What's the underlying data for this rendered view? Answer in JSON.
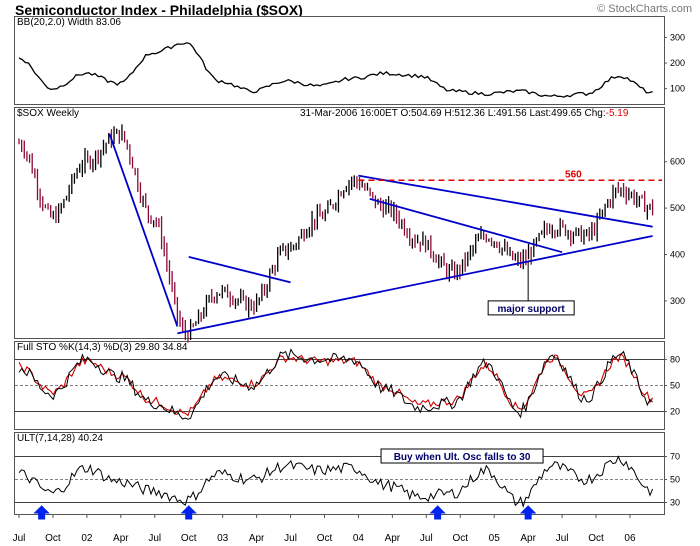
{
  "title": "Semiconductor Index - Philadelphia ($SOX)",
  "brand": "StockCharts.com",
  "quote": {
    "date": "31-Mar-2006 16:00ET",
    "open": "O:504.69",
    "high": "H:512.36",
    "low": "L:491.56",
    "last": "Last:499.65",
    "chg_label": "Chg:",
    "chg": "-5.19"
  },
  "panels": {
    "bbwidth": {
      "label": "BB(20,2.0) Width",
      "value": "83.06",
      "ticks": [
        100,
        200,
        300
      ]
    },
    "price": {
      "label": "$SOX Weekly",
      "ticks": [
        300,
        400,
        500,
        600
      ]
    },
    "sto": {
      "label": "Full STO %K(14,3) %D(3)",
      "k_value": "29.80",
      "d_value": "34.84",
      "ticks": [
        20,
        50,
        80
      ]
    },
    "ult": {
      "label": "ULT(7,14,28)",
      "value": "40.24",
      "ticks": [
        30,
        50,
        70
      ]
    }
  },
  "x_labels": [
    "Jul",
    "Oct",
    "02",
    "Apr",
    "Jul",
    "Oct",
    "03",
    "Apr",
    "Jul",
    "Oct",
    "04",
    "Apr",
    "Jul",
    "Oct",
    "05",
    "Apr",
    "Jul",
    "Oct",
    "06"
  ],
  "annotations": {
    "resistance_label": "560",
    "major_support": "major support",
    "buy_note": "Buy when Ult. Osc falls to 30"
  },
  "colors": {
    "price_down": "#8b0a3a",
    "price_up": "#000000",
    "trendline": "#0000cc",
    "resistance": "#dd0000",
    "d_line": "#cc0000",
    "arrow": "#0022ee"
  },
  "chart_data": {
    "type": "line",
    "title": "Semiconductor Index - Philadelphia ($SOX)",
    "x": [
      "2001-07",
      "2001-10",
      "2002-01",
      "2002-04",
      "2002-07",
      "2002-10",
      "2003-01",
      "2003-04",
      "2003-07",
      "2003-10",
      "2004-01",
      "2004-04",
      "2004-07",
      "2004-10",
      "2005-01",
      "2005-04",
      "2005-07",
      "2005-10",
      "2006-01",
      "2006-03"
    ],
    "series": [
      {
        "name": "$SOX Weekly",
        "values": [
          640,
          480,
          600,
          660,
          480,
          230,
          320,
          290,
          410,
          480,
          560,
          500,
          430,
          360,
          440,
          385,
          460,
          440,
          540,
          500
        ]
      },
      {
        "name": "BB(20,2.0) Width",
        "values": [
          220,
          100,
          160,
          120,
          240,
          280,
          130,
          90,
          130,
          110,
          140,
          160,
          150,
          90,
          80,
          90,
          70,
          80,
          150,
          83
        ]
      },
      {
        "name": "Full STO %K(14,3)",
        "values": [
          70,
          40,
          80,
          60,
          30,
          15,
          60,
          50,
          85,
          80,
          80,
          45,
          25,
          30,
          75,
          20,
          85,
          35,
          85,
          30
        ]
      },
      {
        "name": "%D(3)",
        "values": [
          72,
          42,
          78,
          62,
          32,
          18,
          58,
          52,
          82,
          78,
          78,
          48,
          28,
          32,
          72,
          24,
          82,
          38,
          82,
          35
        ]
      },
      {
        "name": "ULT(7,14,28)",
        "values": [
          55,
          38,
          60,
          48,
          40,
          32,
          55,
          50,
          62,
          58,
          60,
          45,
          35,
          38,
          58,
          30,
          62,
          50,
          68,
          40
        ]
      }
    ],
    "ylim_price": [
      220,
      690
    ],
    "ylim_bbwidth": [
      40,
      380
    ],
    "ylim_sto": [
      0,
      100
    ],
    "ylim_ult": [
      20,
      80
    ],
    "trendlines": [
      {
        "from": [
          "2002-03",
          660
        ],
        "to": [
          "2002-09",
          245
        ]
      },
      {
        "from": [
          "2002-09",
          230
        ],
        "to": [
          "2006-03",
          440
        ]
      },
      {
        "from": [
          "2002-10",
          395
        ],
        "to": [
          "2003-07",
          340
        ]
      },
      {
        "from": [
          "2004-02",
          520
        ],
        "to": [
          "2005-07",
          405
        ]
      },
      {
        "from": [
          "2004-01",
          570
        ],
        "to": [
          "2006-03",
          460
        ]
      }
    ],
    "resistance": 560,
    "buy_signals": [
      "2001-09",
      "2002-10",
      "2004-08",
      "2005-04"
    ]
  }
}
